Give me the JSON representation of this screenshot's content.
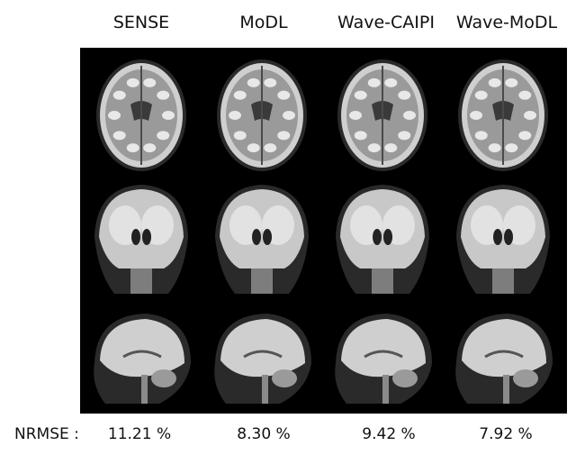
{
  "columns": [
    "SENSE",
    "MoDL",
    "Wave-CAIPI",
    "Wave-MoDL"
  ],
  "rows": [
    "axial",
    "coronal",
    "sagittal"
  ],
  "metric": {
    "label": "NRMSE :",
    "values": [
      "11.21 %",
      "8.30 %",
      "9.42 %",
      "7.92 %"
    ]
  }
}
